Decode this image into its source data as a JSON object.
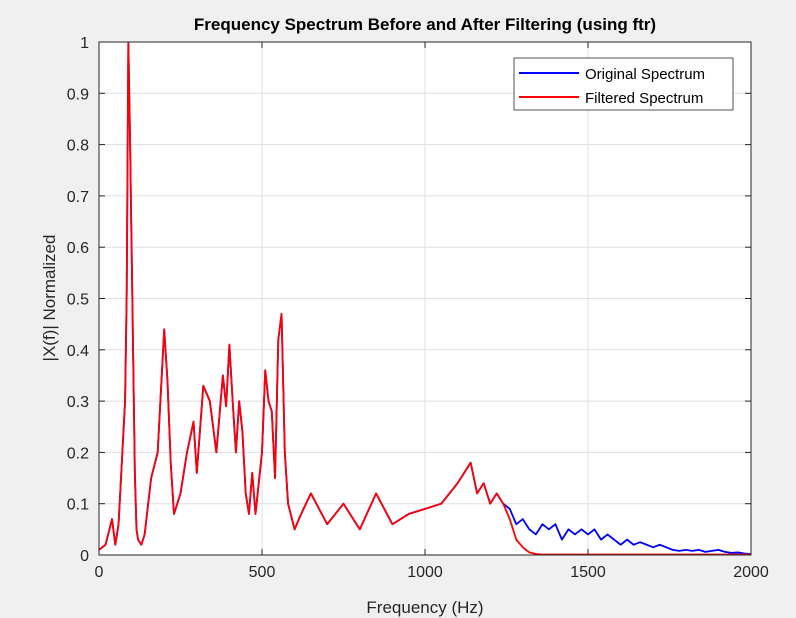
{
  "colors": {
    "figure_bg": "#f0f0f0",
    "axes_bg": "#ffffff",
    "grid": "#dfdfdf",
    "axis": "#262626",
    "original": "#0000ff",
    "filtered": "#ff0000"
  },
  "chart_data": {
    "type": "line",
    "title": "Frequency Spectrum Before and After Filtering (using ftr)",
    "xlabel": "Frequency (Hz)",
    "ylabel": "|X(f)| Normalized",
    "xlim": [
      0,
      2000
    ],
    "ylim": [
      0,
      1
    ],
    "xticks": [
      0,
      500,
      1000,
      1500,
      2000
    ],
    "xtick_labels": [
      "0",
      "500",
      "1000",
      "1500",
      "2000"
    ],
    "yticks": [
      0,
      0.1,
      0.2,
      0.3,
      0.4,
      0.5,
      0.6,
      0.7,
      0.8,
      0.9,
      1
    ],
    "ytick_labels": [
      "0",
      "0.1",
      "0.2",
      "0.3",
      "0.4",
      "0.5",
      "0.6",
      "0.7",
      "0.8",
      "0.9",
      "1"
    ],
    "grid": true,
    "legend_position": "top-right",
    "series": [
      {
        "name": "Original Spectrum",
        "color": "#0000ff",
        "x": [
          0,
          20,
          40,
          50,
          60,
          70,
          80,
          85,
          90,
          95,
          100,
          105,
          110,
          115,
          120,
          130,
          140,
          160,
          180,
          200,
          210,
          220,
          230,
          250,
          270,
          290,
          300,
          320,
          340,
          360,
          380,
          390,
          400,
          410,
          420,
          430,
          440,
          450,
          460,
          470,
          480,
          500,
          510,
          520,
          530,
          540,
          550,
          560,
          570,
          580,
          600,
          620,
          650,
          700,
          750,
          800,
          850,
          900,
          950,
          1000,
          1050,
          1100,
          1120,
          1140,
          1160,
          1180,
          1200,
          1220,
          1240,
          1260,
          1280,
          1300,
          1320,
          1340,
          1360,
          1380,
          1400,
          1420,
          1440,
          1460,
          1480,
          1500,
          1520,
          1540,
          1560,
          1580,
          1600,
          1620,
          1640,
          1660,
          1680,
          1700,
          1720,
          1740,
          1760,
          1780,
          1800,
          1820,
          1840,
          1860,
          1880,
          1900,
          1920,
          1940,
          1960,
          1980,
          2000
        ],
        "y": [
          0.01,
          0.02,
          0.07,
          0.02,
          0.06,
          0.18,
          0.3,
          0.51,
          1.0,
          0.82,
          0.6,
          0.38,
          0.16,
          0.05,
          0.03,
          0.02,
          0.04,
          0.15,
          0.2,
          0.44,
          0.34,
          0.18,
          0.08,
          0.12,
          0.2,
          0.26,
          0.16,
          0.33,
          0.3,
          0.2,
          0.35,
          0.29,
          0.41,
          0.3,
          0.2,
          0.3,
          0.24,
          0.12,
          0.08,
          0.16,
          0.08,
          0.2,
          0.36,
          0.3,
          0.28,
          0.15,
          0.42,
          0.47,
          0.2,
          0.1,
          0.05,
          0.08,
          0.12,
          0.06,
          0.1,
          0.05,
          0.12,
          0.06,
          0.08,
          0.09,
          0.1,
          0.14,
          0.16,
          0.18,
          0.12,
          0.14,
          0.1,
          0.12,
          0.1,
          0.09,
          0.06,
          0.07,
          0.05,
          0.04,
          0.06,
          0.05,
          0.06,
          0.03,
          0.05,
          0.04,
          0.05,
          0.04,
          0.05,
          0.03,
          0.04,
          0.03,
          0.02,
          0.03,
          0.02,
          0.025,
          0.02,
          0.015,
          0.02,
          0.015,
          0.01,
          0.008,
          0.01,
          0.008,
          0.01,
          0.006,
          0.008,
          0.01,
          0.006,
          0.004,
          0.005,
          0.003,
          0.002
        ]
      },
      {
        "name": "Filtered Spectrum",
        "color": "#ff0000",
        "x": [
          0,
          20,
          40,
          50,
          60,
          70,
          80,
          85,
          90,
          95,
          100,
          105,
          110,
          115,
          120,
          130,
          140,
          160,
          180,
          200,
          210,
          220,
          230,
          250,
          270,
          290,
          300,
          320,
          340,
          360,
          380,
          390,
          400,
          410,
          420,
          430,
          440,
          450,
          460,
          470,
          480,
          500,
          510,
          520,
          530,
          540,
          550,
          560,
          570,
          580,
          600,
          620,
          650,
          700,
          750,
          800,
          850,
          900,
          950,
          1000,
          1050,
          1100,
          1120,
          1140,
          1160,
          1180,
          1200,
          1220,
          1240,
          1260,
          1280,
          1300,
          1320,
          1340,
          1360,
          1380,
          1400,
          1420,
          1440,
          1460,
          1480,
          1500,
          1520,
          1540,
          1560,
          1580,
          1600,
          1620,
          1640,
          1660,
          1680,
          1700,
          1720,
          1740,
          1760,
          1780,
          1800,
          1820,
          1840,
          1860,
          1880,
          1900,
          1920,
          1940,
          1960,
          1980,
          2000
        ],
        "y": [
          0.01,
          0.02,
          0.07,
          0.02,
          0.06,
          0.18,
          0.3,
          0.51,
          1.0,
          0.82,
          0.6,
          0.38,
          0.16,
          0.05,
          0.03,
          0.02,
          0.04,
          0.15,
          0.2,
          0.44,
          0.34,
          0.18,
          0.08,
          0.12,
          0.2,
          0.26,
          0.16,
          0.33,
          0.3,
          0.2,
          0.35,
          0.29,
          0.41,
          0.3,
          0.2,
          0.3,
          0.24,
          0.12,
          0.08,
          0.16,
          0.08,
          0.2,
          0.36,
          0.3,
          0.28,
          0.15,
          0.42,
          0.47,
          0.2,
          0.1,
          0.05,
          0.08,
          0.12,
          0.06,
          0.1,
          0.05,
          0.12,
          0.06,
          0.08,
          0.09,
          0.1,
          0.14,
          0.16,
          0.18,
          0.12,
          0.14,
          0.1,
          0.12,
          0.1,
          0.07,
          0.03,
          0.015,
          0.005,
          0.002,
          0.001,
          0.001,
          0.001,
          0.001,
          0.001,
          0.001,
          0.001,
          0.001,
          0.001,
          0.001,
          0.001,
          0.001,
          0.001,
          0.001,
          0.001,
          0.001,
          0.001,
          0.001,
          0.001,
          0.001,
          0.001,
          0.001,
          0.001,
          0.001,
          0.001,
          0.001,
          0.001,
          0.001,
          0.001,
          0.001,
          0.001,
          0.001,
          0.001
        ]
      }
    ]
  }
}
